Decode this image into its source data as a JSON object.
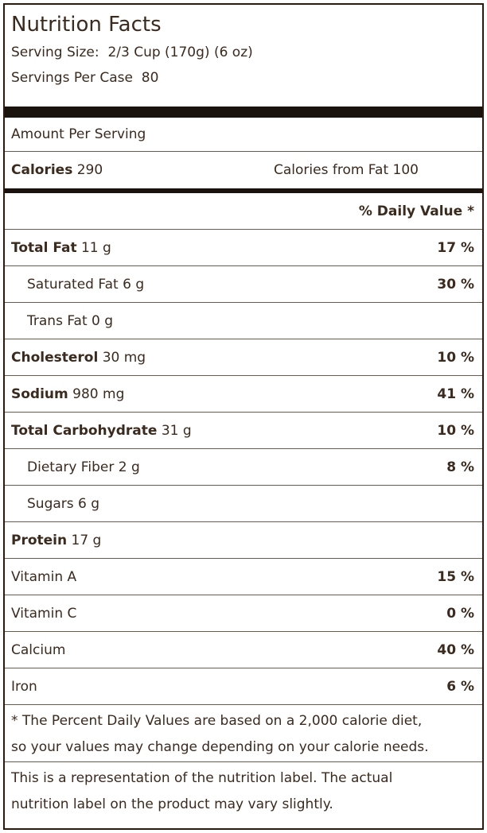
{
  "title": "Nutrition Facts",
  "serving_size": {
    "label": "Serving Size:",
    "value": "2/3 Cup (170g) (6 oz)"
  },
  "servings_per_case": {
    "label": "Servings Per Case",
    "value": "80"
  },
  "amount_per_serving": "Amount Per Serving",
  "calories": {
    "label": "Calories",
    "value": "290",
    "fat_label": "Calories from Fat",
    "fat_value": "100"
  },
  "daily_value_header": "% Daily Value *",
  "rows": [
    {
      "name": "Total Fat",
      "amount": "11 g",
      "dv": "17 %",
      "bold": true,
      "indent": false
    },
    {
      "name": "Saturated Fat",
      "amount": "6 g",
      "dv": "30 %",
      "bold": false,
      "indent": true
    },
    {
      "name": "Trans Fat",
      "amount": "0 g",
      "bold": false,
      "indent": true
    },
    {
      "name": "Cholesterol",
      "amount": "30 mg",
      "dv": "10 %",
      "bold": true,
      "indent": false
    },
    {
      "name": "Sodium",
      "amount": "980 mg",
      "dv": "41 %",
      "bold": true,
      "indent": false
    },
    {
      "name": "Total Carbohydrate",
      "amount": "31 g",
      "dv": "10 %",
      "bold": true,
      "indent": false
    },
    {
      "name": "Dietary Fiber",
      "amount": "2 g",
      "dv": "8 %",
      "bold": false,
      "indent": true
    },
    {
      "name": "Sugars",
      "amount": "6 g",
      "bold": false,
      "indent": true
    },
    {
      "name": "Protein",
      "amount": "17 g",
      "bold": true,
      "indent": false
    },
    {
      "name": "Vitamin A",
      "dv": "15 %",
      "bold": false,
      "indent": false
    },
    {
      "name": "Vitamin C",
      "dv": "0 %",
      "bold": false,
      "indent": false
    },
    {
      "name": "Calcium",
      "dv": "40 %",
      "bold": false,
      "indent": false
    },
    {
      "name": "Iron",
      "dv": "6 %",
      "bold": false,
      "indent": false
    }
  ],
  "footnote": [
    "* The Percent Daily Values are based on a 2,000 calorie diet,",
    "so your values may change depending on your calorie needs."
  ],
  "disclaimer": [
    "This is a representation of the nutrition label. The actual",
    "nutrition label on the product may vary slightly."
  ]
}
